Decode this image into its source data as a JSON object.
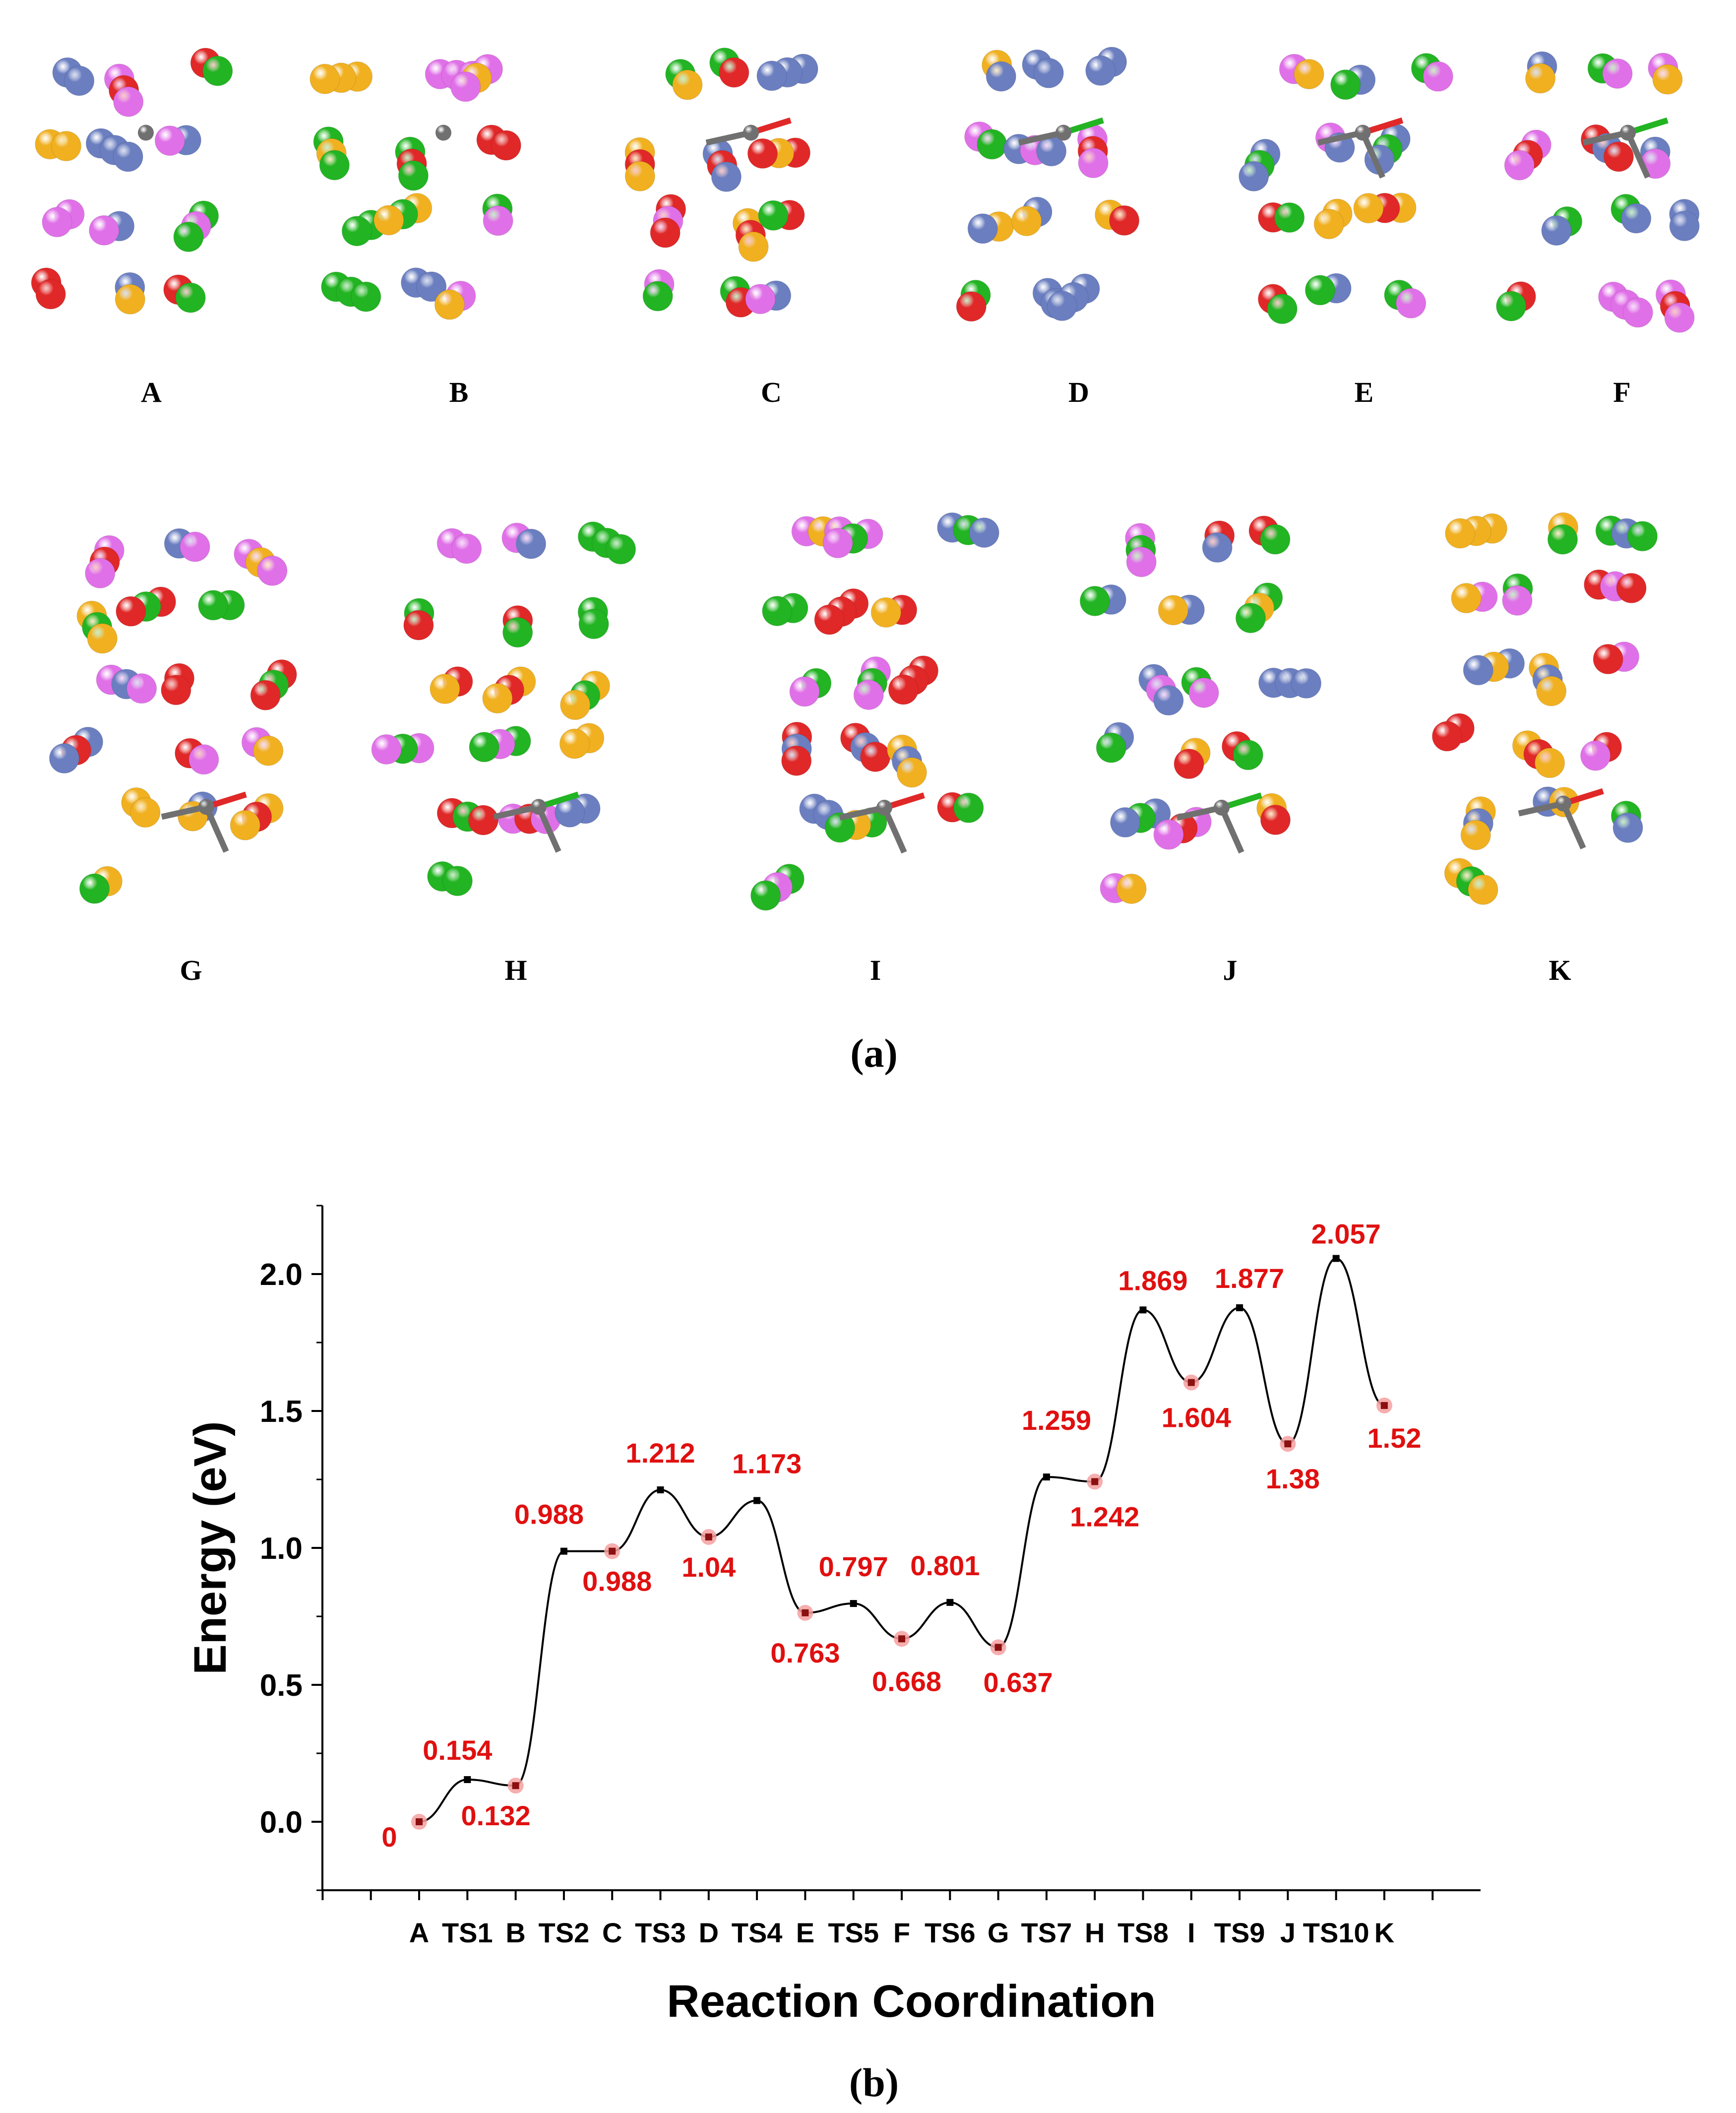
{
  "panel_a": {
    "label": "(a)",
    "structures": [
      {
        "id": "A",
        "label": "A"
      },
      {
        "id": "B",
        "label": "B"
      },
      {
        "id": "C",
        "label": "C"
      },
      {
        "id": "D",
        "label": "D"
      },
      {
        "id": "E",
        "label": "E"
      },
      {
        "id": "F",
        "label": "F"
      },
      {
        "id": "G",
        "label": "G"
      },
      {
        "id": "H",
        "label": "H"
      },
      {
        "id": "I",
        "label": "I"
      },
      {
        "id": "J",
        "label": "J"
      },
      {
        "id": "K",
        "label": "K"
      }
    ],
    "atom_colors": {
      "green": "#22b422",
      "magenta": "#e070e8",
      "blue": "#6a7ec0",
      "red": "#e02828",
      "orange": "#f0b020",
      "gray": "#707070"
    }
  },
  "panel_b_label": "(b)",
  "chart_data": {
    "type": "line",
    "title": "",
    "xlabel": "Reaction Coordination",
    "ylabel": "Energy (eV)",
    "categories": [
      "A",
      "TS1",
      "B",
      "TS2",
      "C",
      "TS3",
      "D",
      "TS4",
      "E",
      "TS5",
      "F",
      "TS6",
      "G",
      "TS7",
      "H",
      "TS8",
      "I",
      "TS9",
      "J",
      "TS10",
      "K"
    ],
    "values": [
      0,
      0.154,
      0.132,
      0.988,
      0.988,
      1.212,
      1.04,
      1.173,
      0.763,
      0.797,
      0.668,
      0.801,
      0.637,
      1.259,
      1.242,
      1.869,
      1.604,
      1.877,
      1.38,
      2.057,
      1.52
    ],
    "value_labels": [
      "0",
      "0.154",
      "0.132",
      "0.988",
      "0.988",
      "1.212",
      "1.04",
      "1.173",
      "0.763",
      "0.797",
      "0.668",
      "0.801",
      "0.637",
      "1.259",
      "1.242",
      "1.869",
      "1.604",
      "1.877",
      "1.38",
      "2.057",
      "1.52"
    ],
    "point_kind": [
      "min",
      "ts",
      "min",
      "ts",
      "min",
      "ts",
      "min",
      "ts",
      "min",
      "ts",
      "min",
      "ts",
      "min",
      "ts",
      "min",
      "ts",
      "min",
      "ts",
      "min",
      "ts",
      "min"
    ],
    "label_side": [
      "below",
      "above",
      "below",
      "above",
      "below",
      "above",
      "below",
      "above",
      "below",
      "above",
      "below",
      "above",
      "below",
      "above",
      "below",
      "above",
      "below",
      "above",
      "below",
      "above",
      "below"
    ],
    "ylim": [
      -0.25,
      2.25
    ],
    "yticks": [
      "0.0",
      "0.5",
      "1.0",
      "1.5",
      "2.0"
    ],
    "ytick_values": [
      0,
      0.5,
      1.0,
      1.5,
      2.0
    ],
    "colors": {
      "line": "#000000",
      "label": "#e01010",
      "minimum_marker": "#f4a0a0"
    }
  }
}
